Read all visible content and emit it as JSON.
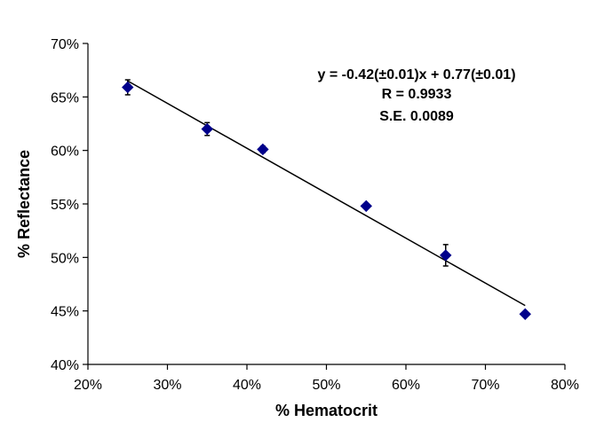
{
  "chart_data": {
    "type": "scatter",
    "title": "",
    "xlabel": "% Hematocrit",
    "ylabel": "% Reflectance",
    "xlim": [
      0.2,
      0.8
    ],
    "ylim": [
      0.4,
      0.7
    ],
    "x_ticks": [
      "20%",
      "30%",
      "40%",
      "50%",
      "60%",
      "70%",
      "80%"
    ],
    "y_ticks": [
      "40%",
      "45%",
      "50%",
      "55%",
      "60%",
      "65%",
      "70%"
    ],
    "grid": false,
    "legend": "none",
    "marker": "diamond",
    "marker_color": "#00008B",
    "series": [
      {
        "x": [
          0.25,
          0.35,
          0.42,
          0.55,
          0.65,
          0.75
        ],
        "y": [
          0.659,
          0.62,
          0.601,
          0.548,
          0.502,
          0.447
        ],
        "y_err": [
          0.007,
          0.006,
          0.003,
          0.002,
          0.01,
          0.002
        ]
      }
    ],
    "fit_line": {
      "slope": -0.42,
      "intercept": 0.77,
      "x_range": [
        0.25,
        0.75
      ]
    },
    "annotations": [
      "y = -0.42(±0.01)x + 0.77(±0.01)",
      "R = 0.9933",
      "S.E. 0.0089"
    ]
  }
}
